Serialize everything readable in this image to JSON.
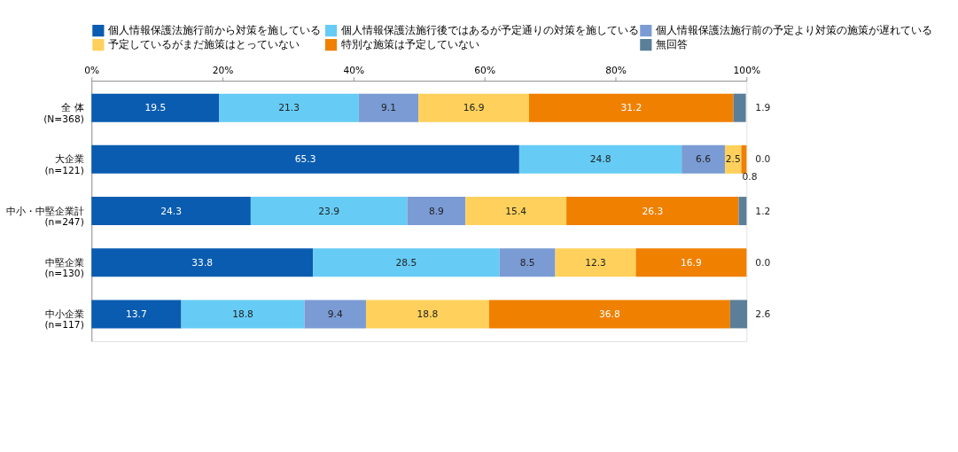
{
  "chart_data": {
    "type": "bar",
    "orientation": "horizontal",
    "stacked": true,
    "data_labels": true,
    "grid": false,
    "legend": "top",
    "categories": [
      "全 体 (N=368)",
      "大企業 (n=121)",
      "中小・中堅企業計 (n=247)",
      "中堅企業 (n=130)",
      "中小企業 (n=117)"
    ],
    "xlim": [
      0,
      100
    ],
    "xticks": [
      {
        "value": 0,
        "label": "0%"
      },
      {
        "value": 20,
        "label": "20%"
      },
      {
        "value": 40,
        "label": "40%"
      },
      {
        "value": 60,
        "label": "60%"
      },
      {
        "value": 80,
        "label": "80%"
      },
      {
        "value": 100,
        "label": "100%"
      }
    ],
    "series": [
      {
        "name": "個人情報保護法施行前から対策を施している",
        "color": "#0a5cb0",
        "values": [
          19.5,
          65.3,
          24.3,
          33.8,
          13.7
        ]
      },
      {
        "name": "個人情報保護法施行後ではあるが予定通りの対策を施している",
        "color": "#66ccf5",
        "values": [
          21.3,
          24.8,
          23.9,
          28.5,
          18.8
        ]
      },
      {
        "name": "個人情報保護法施行前の予定より対策の施策が遅れている",
        "color": "#7b9bd4",
        "values": [
          9.1,
          6.6,
          8.9,
          8.5,
          9.4
        ]
      },
      {
        "name": "予定しているがまだ施策はとっていない",
        "color": "#ffd15c",
        "values": [
          16.9,
          2.5,
          15.4,
          12.3,
          18.8
        ]
      },
      {
        "name": "特別な施策は予定していない",
        "color": "#f08000",
        "values": [
          31.2,
          0.8,
          26.3,
          16.9,
          36.8
        ]
      },
      {
        "name": "無回答",
        "color": "#5b7f99",
        "values": [
          1.9,
          0.0,
          1.2,
          0.0,
          2.6
        ],
        "value_labels": [
          "1.9",
          "0.0",
          "1.2",
          "0.0",
          "2.6"
        ]
      }
    ]
  }
}
